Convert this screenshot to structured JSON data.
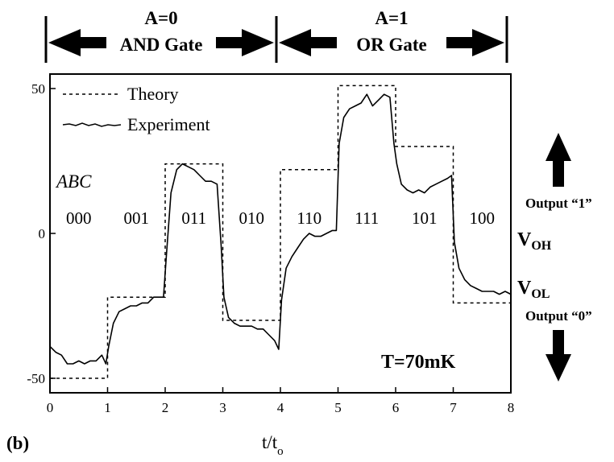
{
  "figure_label": "(b)",
  "top_banner": [
    {
      "line1": "A=0",
      "line2": "AND Gate"
    },
    {
      "line1": "A=1",
      "line2": "OR Gate"
    }
  ],
  "right_panel": {
    "output_high": "Output “1”",
    "output_low": "Output “0”",
    "voh_main": "V",
    "voh_sub": "OH",
    "vol_main": "V",
    "vol_sub": "OL"
  },
  "chart_data": {
    "type": "line",
    "xlabel_main": "t/t",
    "xlabel_sub": "o",
    "ylabel": "",
    "xlim": [
      0,
      8
    ],
    "ylim": [
      -55,
      55
    ],
    "x_ticks": [
      0,
      1,
      2,
      3,
      4,
      5,
      6,
      7,
      8
    ],
    "y_ticks": [
      50,
      0,
      -50
    ],
    "legend": {
      "placement": "top-left",
      "entries": [
        "Theory",
        "Experiment"
      ]
    },
    "annotation_abc": "ABC",
    "annotation_temp": "T=70mK",
    "segment_labels": [
      "000",
      "001",
      "011",
      "010",
      "110",
      "111",
      "101",
      "100"
    ],
    "series": [
      {
        "name": "Theory",
        "style": "dashed",
        "steps": [
          -50,
          -22,
          24,
          -30,
          22,
          51,
          30,
          -24
        ]
      },
      {
        "name": "Experiment",
        "style": "solid",
        "x": [
          0,
          0.1,
          0.2,
          0.3,
          0.4,
          0.5,
          0.6,
          0.7,
          0.8,
          0.9,
          0.97,
          1.02,
          1.1,
          1.2,
          1.3,
          1.4,
          1.5,
          1.6,
          1.7,
          1.8,
          1.9,
          1.97,
          2.02,
          2.1,
          2.2,
          2.3,
          2.4,
          2.5,
          2.6,
          2.7,
          2.8,
          2.9,
          2.97,
          3.02,
          3.1,
          3.2,
          3.3,
          3.4,
          3.5,
          3.6,
          3.7,
          3.8,
          3.9,
          3.97,
          4.02,
          4.1,
          4.2,
          4.3,
          4.4,
          4.5,
          4.6,
          4.7,
          4.8,
          4.9,
          4.97,
          5.02,
          5.1,
          5.2,
          5.3,
          5.4,
          5.5,
          5.6,
          5.7,
          5.8,
          5.9,
          5.97,
          6.02,
          6.1,
          6.2,
          6.3,
          6.4,
          6.5,
          6.6,
          6.7,
          6.8,
          6.9,
          6.97,
          7.02,
          7.1,
          7.2,
          7.3,
          7.4,
          7.5,
          7.6,
          7.7,
          7.8,
          7.9,
          8.0
        ],
        "y": [
          -39,
          -41,
          -42,
          -45,
          -45,
          -44,
          -45,
          -44,
          -44,
          -42,
          -45,
          -39,
          -31,
          -27,
          -26,
          -25,
          -25,
          -24,
          -24,
          -22,
          -22,
          -22,
          -8,
          14,
          22,
          24,
          23,
          22,
          20,
          18,
          18,
          17,
          -4,
          -22,
          -29,
          -31,
          -32,
          -32,
          -32,
          -33,
          -33,
          -35,
          -37,
          -40,
          -23,
          -12,
          -8,
          -5,
          -2,
          0,
          -1,
          -1,
          0,
          1,
          1,
          31,
          40,
          43,
          44,
          45,
          48,
          44,
          46,
          48,
          47,
          31,
          24,
          17,
          15,
          14,
          15,
          14,
          16,
          17,
          18,
          19,
          20,
          -3,
          -12,
          -16,
          -18,
          -19,
          -20,
          -20,
          -20,
          -21,
          -20,
          -21
        ]
      }
    ]
  }
}
